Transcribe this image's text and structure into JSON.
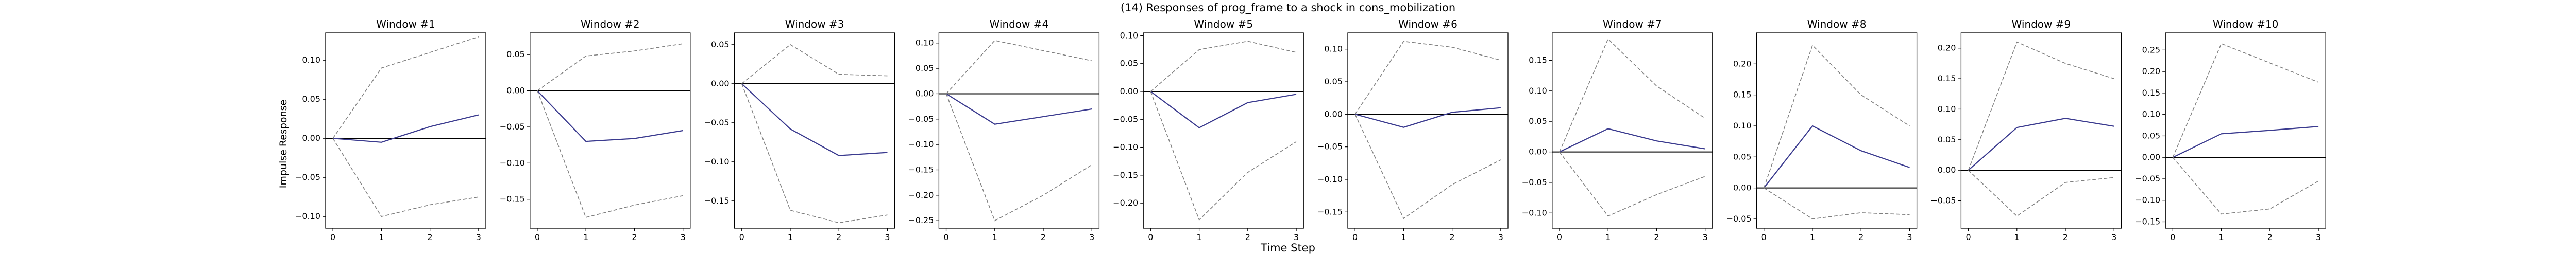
{
  "figure": {
    "title": "(14) Responses of prog_frame to a shock in cons_mobilization",
    "xlabel": "Time Step",
    "ylabel": "Impulse Response"
  },
  "colors": {
    "response": "#3b3b8f",
    "bands": "#7f7f7f",
    "zero_line": "#000000",
    "axes": "#000000"
  },
  "chart_data": [
    {
      "type": "line",
      "title": "Window #1",
      "x": [
        0,
        1,
        2,
        3
      ],
      "xticks": [
        "0",
        "1",
        "2",
        "3"
      ],
      "ylim": [
        -0.115,
        0.135
      ],
      "yticks": [
        -0.1,
        -0.05,
        0.0,
        0.05,
        0.1
      ],
      "ytick_labels": [
        "−0.10",
        "−0.05",
        "0.00",
        "0.05",
        "0.10"
      ],
      "series": [
        {
          "role": "response",
          "values": [
            0.0,
            -0.005,
            0.015,
            0.03
          ]
        },
        {
          "role": "upper",
          "values": [
            0.0,
            0.09,
            0.11,
            0.13
          ]
        },
        {
          "role": "lower",
          "values": [
            0.0,
            -0.1,
            -0.085,
            -0.075
          ]
        }
      ]
    },
    {
      "type": "line",
      "title": "Window #2",
      "x": [
        0,
        1,
        2,
        3
      ],
      "xticks": [
        "0",
        "1",
        "2",
        "3"
      ],
      "ylim": [
        -0.19,
        0.08
      ],
      "yticks": [
        -0.15,
        -0.1,
        -0.05,
        0.0,
        0.05
      ],
      "ytick_labels": [
        "−0.15",
        "−0.10",
        "−0.05",
        "0.00",
        "0.05"
      ],
      "series": [
        {
          "role": "response",
          "values": [
            0.0,
            -0.07,
            -0.066,
            -0.055
          ]
        },
        {
          "role": "upper",
          "values": [
            0.0,
            0.048,
            0.055,
            0.065
          ]
        },
        {
          "role": "lower",
          "values": [
            0.0,
            -0.175,
            -0.158,
            -0.145
          ]
        }
      ]
    },
    {
      "type": "line",
      "title": "Window #3",
      "x": [
        0,
        1,
        2,
        3
      ],
      "xticks": [
        "0",
        "1",
        "2",
        "3"
      ],
      "ylim": [
        -0.185,
        0.065
      ],
      "yticks": [
        -0.15,
        -0.1,
        -0.05,
        0.0,
        0.05
      ],
      "ytick_labels": [
        "−0.15",
        "−0.10",
        "−0.05",
        "0.00",
        "0.05"
      ],
      "series": [
        {
          "role": "response",
          "values": [
            0.0,
            -0.058,
            -0.092,
            -0.088
          ]
        },
        {
          "role": "upper",
          "values": [
            0.0,
            0.05,
            0.012,
            0.01
          ]
        },
        {
          "role": "lower",
          "values": [
            0.0,
            -0.162,
            -0.178,
            -0.168
          ]
        }
      ]
    },
    {
      "type": "line",
      "title": "Window #4",
      "x": [
        0,
        1,
        2,
        3
      ],
      "xticks": [
        "0",
        "1",
        "2",
        "3"
      ],
      "ylim": [
        -0.265,
        0.12
      ],
      "yticks": [
        -0.25,
        -0.2,
        -0.15,
        -0.1,
        -0.05,
        0.0,
        0.05,
        0.1
      ],
      "ytick_labels": [
        "−0.25",
        "−0.20",
        "−0.15",
        "−0.10",
        "−0.05",
        "0.00",
        "0.05",
        "0.10"
      ],
      "series": [
        {
          "role": "response",
          "values": [
            0.0,
            -0.06,
            -0.045,
            -0.03
          ]
        },
        {
          "role": "upper",
          "values": [
            0.0,
            0.105,
            0.085,
            0.065
          ]
        },
        {
          "role": "lower",
          "values": [
            0.0,
            -0.25,
            -0.2,
            -0.14
          ]
        }
      ]
    },
    {
      "type": "line",
      "title": "Window #5",
      "x": [
        0,
        1,
        2,
        3
      ],
      "xticks": [
        "0",
        "1",
        "2",
        "3"
      ],
      "ylim": [
        -0.245,
        0.105
      ],
      "yticks": [
        -0.2,
        -0.15,
        -0.1,
        -0.05,
        0.0,
        0.05,
        0.1
      ],
      "ytick_labels": [
        "−0.20",
        "−0.15",
        "−0.10",
        "−0.05",
        "0.00",
        "0.05",
        "0.10"
      ],
      "series": [
        {
          "role": "response",
          "values": [
            0.0,
            -0.065,
            -0.02,
            -0.005
          ]
        },
        {
          "role": "upper",
          "values": [
            0.0,
            0.075,
            0.09,
            0.07
          ]
        },
        {
          "role": "lower",
          "values": [
            0.0,
            -0.23,
            -0.145,
            -0.09
          ]
        }
      ]
    },
    {
      "type": "line",
      "title": "Window #6",
      "x": [
        0,
        1,
        2,
        3
      ],
      "xticks": [
        "0",
        "1",
        "2",
        "3"
      ],
      "ylim": [
        -0.175,
        0.125
      ],
      "yticks": [
        -0.15,
        -0.1,
        -0.05,
        0.0,
        0.05,
        0.1
      ],
      "ytick_labels": [
        "−0.15",
        "−0.10",
        "−0.05",
        "0.00",
        "0.05",
        "0.10"
      ],
      "series": [
        {
          "role": "response",
          "values": [
            0.0,
            -0.02,
            0.003,
            0.01
          ]
        },
        {
          "role": "upper",
          "values": [
            0.0,
            0.112,
            0.103,
            0.083
          ]
        },
        {
          "role": "lower",
          "values": [
            0.0,
            -0.16,
            -0.108,
            -0.07
          ]
        }
      ]
    },
    {
      "type": "line",
      "title": "Window #7",
      "x": [
        0,
        1,
        2,
        3
      ],
      "xticks": [
        "0",
        "1",
        "2",
        "3"
      ],
      "ylim": [
        -0.125,
        0.195
      ],
      "yticks": [
        -0.1,
        -0.05,
        0.0,
        0.05,
        0.1,
        0.15
      ],
      "ytick_labels": [
        "−0.10",
        "−0.05",
        "0.00",
        "0.05",
        "0.10",
        "0.15"
      ],
      "series": [
        {
          "role": "response",
          "values": [
            0.0,
            0.038,
            0.018,
            0.005
          ]
        },
        {
          "role": "upper",
          "values": [
            0.0,
            0.185,
            0.108,
            0.055
          ]
        },
        {
          "role": "lower",
          "values": [
            0.0,
            -0.105,
            -0.07,
            -0.04
          ]
        }
      ]
    },
    {
      "type": "line",
      "title": "Window #8",
      "x": [
        0,
        1,
        2,
        3
      ],
      "xticks": [
        "0",
        "1",
        "2",
        "3"
      ],
      "ylim": [
        -0.065,
        0.25
      ],
      "yticks": [
        -0.05,
        0.0,
        0.05,
        0.1,
        0.15,
        0.2
      ],
      "ytick_labels": [
        "−0.05",
        "0.00",
        "0.05",
        "0.10",
        "0.15",
        "0.20"
      ],
      "series": [
        {
          "role": "response",
          "values": [
            0.0,
            0.1,
            0.06,
            0.033
          ]
        },
        {
          "role": "upper",
          "values": [
            0.0,
            0.23,
            0.15,
            0.1
          ]
        },
        {
          "role": "lower",
          "values": [
            0.0,
            -0.05,
            -0.04,
            -0.043
          ]
        }
      ]
    },
    {
      "type": "line",
      "title": "Window #9",
      "x": [
        0,
        1,
        2,
        3
      ],
      "xticks": [
        "0",
        "1",
        "2",
        "3"
      ],
      "ylim": [
        -0.095,
        0.225
      ],
      "yticks": [
        -0.05,
        0.0,
        0.05,
        0.1,
        0.15,
        0.2
      ],
      "ytick_labels": [
        "−0.05",
        "0.00",
        "0.05",
        "0.10",
        "0.15",
        "0.20"
      ],
      "series": [
        {
          "role": "response",
          "values": [
            0.0,
            0.07,
            0.085,
            0.072
          ]
        },
        {
          "role": "upper",
          "values": [
            0.0,
            0.21,
            0.175,
            0.15
          ]
        },
        {
          "role": "lower",
          "values": [
            0.0,
            -0.075,
            -0.02,
            -0.012
          ]
        }
      ]
    },
    {
      "type": "line",
      "title": "Window #10",
      "x": [
        0,
        1,
        2,
        3
      ],
      "xticks": [
        "0",
        "1",
        "2",
        "3"
      ],
      "ylim": [
        -0.165,
        0.29
      ],
      "yticks": [
        -0.15,
        -0.1,
        -0.05,
        0.0,
        0.05,
        0.1,
        0.15,
        0.2,
        0.25
      ],
      "ytick_labels": [
        "−0.15",
        "−0.10",
        "−0.05",
        "0.00",
        "0.05",
        "0.10",
        "0.15",
        "0.20",
        "0.25"
      ],
      "series": [
        {
          "role": "response",
          "values": [
            0.0,
            0.055,
            0.063,
            0.072
          ]
        },
        {
          "role": "upper",
          "values": [
            0.0,
            0.265,
            0.22,
            0.175
          ]
        },
        {
          "role": "lower",
          "values": [
            0.0,
            -0.132,
            -0.12,
            -0.055
          ]
        }
      ]
    }
  ]
}
